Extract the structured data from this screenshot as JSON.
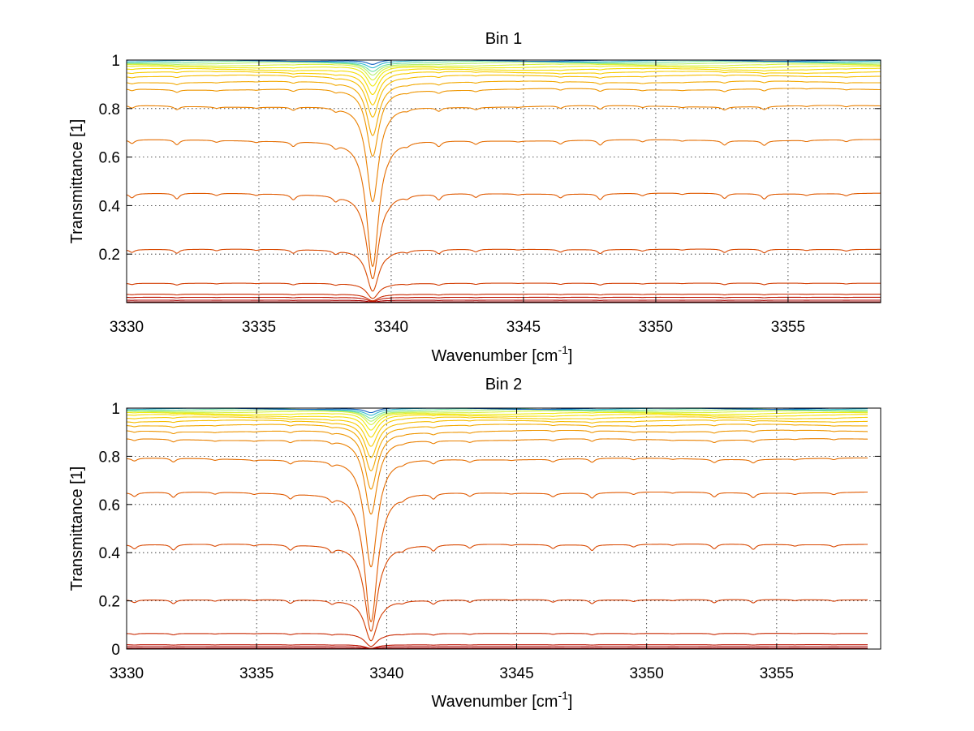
{
  "chart_data": [
    {
      "type": "line",
      "title": "Bin 1",
      "xlabel": "Wavenumber [cm",
      "xlabel_sup": "-1",
      "xlabel_end": "]",
      "ylabel": "Transmittance [1]",
      "xlim": [
        3330,
        3358.5
      ],
      "ylim": [
        0,
        1
      ],
      "xticks": [
        3330,
        3335,
        3340,
        3345,
        3350,
        3355
      ],
      "xtick_labels": [
        "3330",
        "3335",
        "3340",
        "3345",
        "3350",
        "3355"
      ],
      "yticks": [
        0.2,
        0.4,
        0.6,
        0.8,
        1
      ],
      "ytick_labels": [
        "0.2",
        "0.4",
        "0.6",
        "0.8",
        "1"
      ],
      "grid": true,
      "x_end": 3358.5,
      "series_baselines": [
        0.003,
        0.01,
        0.022,
        0.035,
        0.08,
        0.22,
        0.45,
        0.67,
        0.81,
        0.88,
        0.91,
        0.935,
        0.95,
        0.962,
        0.972,
        0.98,
        0.987,
        0.992,
        0.996,
        0.999
      ],
      "series_colors": [
        "#8a0000",
        "#a80000",
        "#bb1200",
        "#c82800",
        "#d23b00",
        "#d84800",
        "#e05a00",
        "#e56d00",
        "#ea8000",
        "#ee9500",
        "#f2a800",
        "#f5bc00",
        "#f7cc00",
        "#f5dc00",
        "#eeea10",
        "#d8f040",
        "#b5f070",
        "#70e0a0",
        "#30b8d0",
        "#1060c0"
      ],
      "main_dip": {
        "x": 3339.3,
        "bias": 0.52,
        "width": 0.28
      },
      "minor_lines": [
        3330.2,
        3331.9,
        3333.4,
        3334.9,
        3336.3,
        3337.9,
        3339.9,
        3340.6,
        3341.8,
        3343.2,
        3344.8,
        3346.4,
        3347.9,
        3349.5,
        3351.0,
        3352.6,
        3354.1,
        3355.7,
        3357.2
      ]
    },
    {
      "type": "line",
      "title": "Bin 2",
      "xlabel": "Wavenumber [cm",
      "xlabel_sup": "-1",
      "xlabel_end": "]",
      "ylabel": "Transmittance [1]",
      "xlim": [
        3330,
        3359
      ],
      "ylim": [
        0,
        1
      ],
      "xticks": [
        3330,
        3335,
        3340,
        3345,
        3350,
        3355
      ],
      "xtick_labels": [
        "3330",
        "3335",
        "3340",
        "3345",
        "3350",
        "3355"
      ],
      "yticks": [
        0,
        0.2,
        0.4,
        0.6,
        0.8,
        1
      ],
      "ytick_labels": [
        "0",
        "0.2",
        "0.4",
        "0.6",
        "0.8",
        "1"
      ],
      "grid": true,
      "x_end": 3358.5,
      "series_baselines": [
        0.003,
        0.01,
        0.018,
        0.065,
        0.205,
        0.435,
        0.65,
        0.79,
        0.87,
        0.905,
        0.93,
        0.947,
        0.96,
        0.97,
        0.978,
        0.985,
        0.99,
        0.994,
        0.997,
        0.999
      ],
      "series_colors": [
        "#8a0000",
        "#a80000",
        "#bb1200",
        "#c82800",
        "#d23b00",
        "#d84800",
        "#e05a00",
        "#e56d00",
        "#ea8000",
        "#ee9500",
        "#f2a800",
        "#f5bc00",
        "#f7cc00",
        "#f5dc00",
        "#eeea10",
        "#d8f040",
        "#b5f070",
        "#70e0a0",
        "#30b8d0",
        "#1060c0"
      ],
      "main_dip": {
        "x": 3339.4,
        "bias": 0.55,
        "width": 0.3
      },
      "minor_lines": [
        3330.3,
        3331.8,
        3333.4,
        3334.9,
        3336.3,
        3337.9,
        3339.9,
        3340.6,
        3341.8,
        3343.2,
        3344.8,
        3346.4,
        3347.9,
        3349.5,
        3351.0,
        3352.6,
        3354.1,
        3355.7,
        3357.2
      ]
    }
  ]
}
